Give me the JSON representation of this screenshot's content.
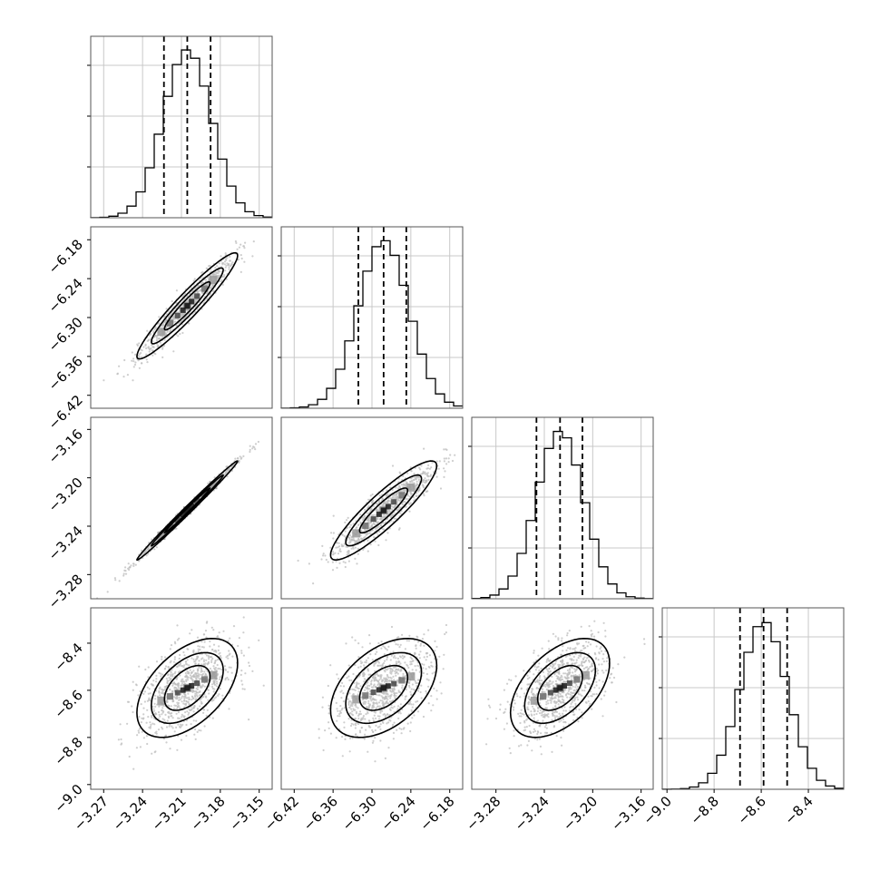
{
  "chart_data": {
    "type": "corner",
    "params": [
      {
        "name": "",
        "range": [
          -3.28,
          -3.14
        ],
        "ticks": [
          -3.27,
          -3.24,
          -3.21,
          -3.18,
          -3.15
        ],
        "tick_labels": [
          "−3.27",
          "−3.24",
          "−3.21",
          "−3.18",
          "−3.15"
        ],
        "mean": -3.2055,
        "sd": 0.0185,
        "quantiles": [
          -3.2235,
          -3.2055,
          -3.1875
        ]
      },
      {
        "name": "",
        "range": [
          -6.44,
          -6.16
        ],
        "ticks": [
          -6.42,
          -6.36,
          -6.3,
          -6.24,
          -6.18
        ],
        "tick_labels": [
          "−6.42",
          "−6.36",
          "−6.30",
          "−6.24",
          "−6.18"
        ],
        "mean": -6.282,
        "sd": 0.039,
        "quantiles": [
          -6.321,
          -6.282,
          -6.247
        ]
      },
      {
        "name": "",
        "range": [
          -3.3,
          -3.15
        ],
        "ticks": [
          -3.28,
          -3.24,
          -3.2,
          -3.16
        ],
        "tick_labels": [
          "−3.28",
          "−3.24",
          "−3.20",
          "−3.16"
        ],
        "mean": -3.227,
        "sd": 0.0195,
        "quantiles": [
          -3.2465,
          -3.227,
          -3.2085
        ]
      },
      {
        "name": "",
        "range": [
          -9.02,
          -8.25
        ],
        "ticks": [
          -9.0,
          -8.8,
          -8.6,
          -8.4
        ],
        "tick_labels": [
          "−9.0",
          "−8.8",
          "−8.6",
          "−8.4"
        ],
        "mean": -8.59,
        "sd": 0.1,
        "quantiles": [
          -8.69,
          -8.59,
          -8.49
        ]
      }
    ],
    "correlations": [
      [
        1.0,
        0.95,
        0.995,
        0.5
      ],
      [
        0.95,
        1.0,
        0.9,
        0.45
      ],
      [
        0.995,
        0.9,
        1.0,
        0.5
      ],
      [
        0.5,
        0.45,
        0.5,
        1.0
      ]
    ],
    "histogram_bins": 20,
    "quantile_levels": [
      0.16,
      0.5,
      0.84
    ],
    "grid": true,
    "samples_color": "#bdbdbd",
    "line_color": "#000000"
  }
}
